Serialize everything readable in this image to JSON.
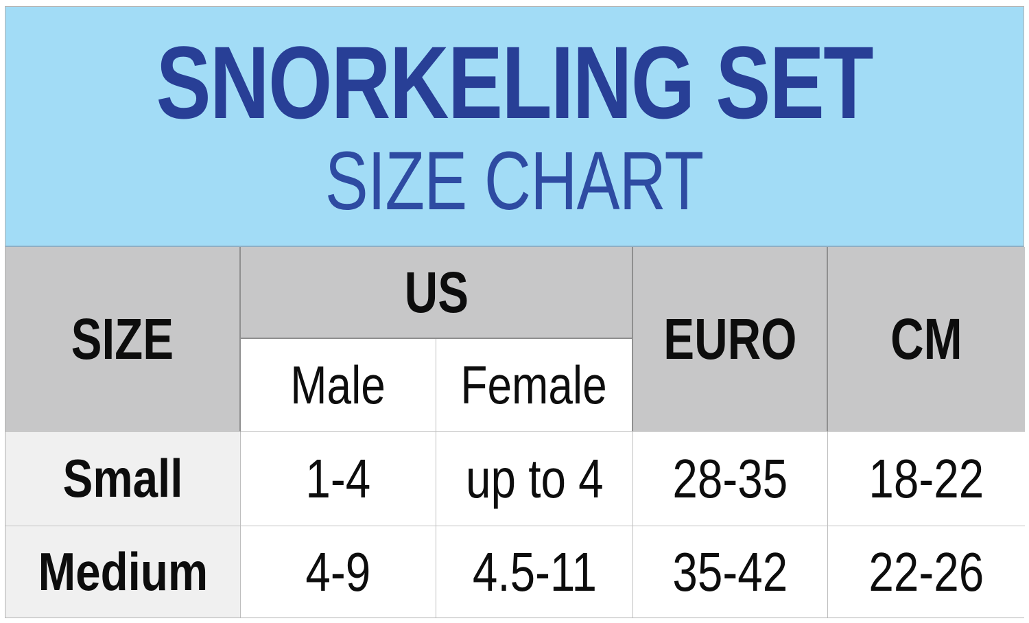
{
  "header": {
    "title": "SNORKELING SET",
    "subtitle": "SIZE CHART",
    "banner_bg": "#a2dcf6",
    "title_color": "#283f96",
    "subtitle_color": "#2e4ba2"
  },
  "table": {
    "col_headers": {
      "size": "SIZE",
      "us": "US",
      "male": "Male",
      "female": "Female",
      "euro": "EURO",
      "cm": "CM"
    },
    "rows": [
      {
        "size": "Small",
        "us_male": "1-4",
        "us_female": "up to 4",
        "euro": "28-35",
        "cm": "18-22"
      },
      {
        "size": "Medium",
        "us_male": "4-9",
        "us_female": "4.5-11",
        "euro": "35-42",
        "cm": "22-26"
      }
    ],
    "colors": {
      "header_cell_bg": "#c7c7c8",
      "row_label_bg": "#f0f0f0",
      "data_cell_bg": "#ffffff",
      "dark_border": "#8f8f8f",
      "light_border": "#c2c2c2"
    }
  },
  "chart_data": {
    "type": "table",
    "title": "SNORKELING SET",
    "subtitle": "SIZE CHART",
    "columns": [
      "SIZE",
      "US Male",
      "US Female",
      "EURO",
      "CM"
    ],
    "rows": [
      [
        "Small",
        "1-4",
        "up to 4",
        "28-35",
        "18-22"
      ],
      [
        "Medium",
        "4-9",
        "4.5-11",
        "35-42",
        "22-26"
      ]
    ]
  }
}
